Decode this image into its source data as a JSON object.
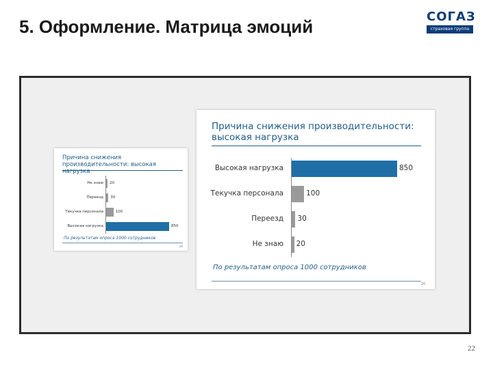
{
  "slide": {
    "title": "5. Оформление. Матрица эмоций",
    "page_number": "22"
  },
  "logo": {
    "word": "СОГАЗ",
    "tagline": "страховая группа"
  },
  "colors": {
    "accent_bar": "#1f6fa6",
    "muted_bar": "#9a9a9a",
    "title_blue": "#1f5f8b"
  },
  "small_card": {
    "title": "Причина снижения производительности: высокая нагрузка",
    "footnote": "По результатам опроса 1000 сотрудников",
    "page": "20"
  },
  "large_card": {
    "title": "Причина снижения производительности: высокая нагрузка",
    "footnote": "По результатам опроса 1000 сотрудников",
    "page": "20"
  },
  "chart_data": [
    {
      "type": "bar",
      "orientation": "horizontal",
      "title": "Причина снижения производительности: высокая нагрузка",
      "categories": [
        "Не знаю",
        "Переезд",
        "Текучка персонала",
        "Высокая нагрузка"
      ],
      "values": [
        20,
        30,
        100,
        850
      ],
      "value_labels": [
        "20",
        "30",
        "100",
        "850"
      ],
      "highlight": "Высокая нагрузка",
      "xlim": [
        0,
        850
      ]
    },
    {
      "type": "bar",
      "orientation": "horizontal",
      "title": "Причина снижения производительности: высокая нагрузка",
      "categories": [
        "Высокая нагрузка",
        "Текучка персонала",
        "Переезд",
        "Не знаю"
      ],
      "values": [
        850,
        100,
        30,
        20
      ],
      "value_labels": [
        "850",
        "100",
        "30",
        "20"
      ],
      "highlight": "Высокая нагрузка",
      "xlim": [
        0,
        850
      ]
    }
  ]
}
